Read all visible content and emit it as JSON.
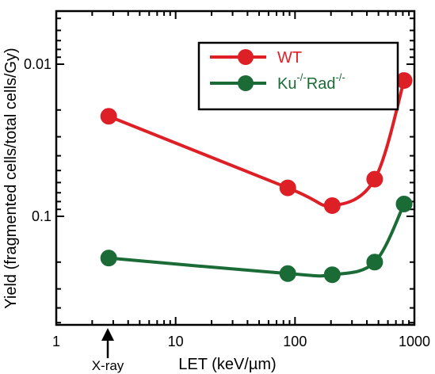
{
  "chart_data": {
    "type": "line",
    "xlabel": "LET (keV/µm)",
    "ylabel": "Yield (fragmented cells/total cells/Gy)",
    "x_scale": "log",
    "y_scale": "log-inverted",
    "xlim": [
      1,
      1000
    ],
    "ylim_top_to_bottom": [
      0.005,
      0.5
    ],
    "x_ticks": [
      "1",
      "10",
      "100",
      "1000"
    ],
    "y_ticks": [
      "0.01",
      "0.1"
    ],
    "annotation": "X-ray",
    "annotation_x": 2.75,
    "series": [
      {
        "name": "WT",
        "superscript": "",
        "suffix": "",
        "suffix_superscript": "",
        "color": "#dd1f26",
        "x": [
          2.75,
          87,
          205,
          465,
          820
        ],
        "y": [
          0.022,
          0.065,
          0.085,
          0.057,
          0.0128
        ]
      },
      {
        "name": "Ku",
        "superscript": "-/-",
        "suffix": "Rad",
        "suffix_superscript": "-/-",
        "color": "#1a6b36",
        "x": [
          2.75,
          87,
          205,
          465,
          820
        ],
        "y": [
          0.188,
          0.238,
          0.242,
          0.2,
          0.083
        ]
      }
    ],
    "legend_position": "top-right",
    "grid": false
  }
}
